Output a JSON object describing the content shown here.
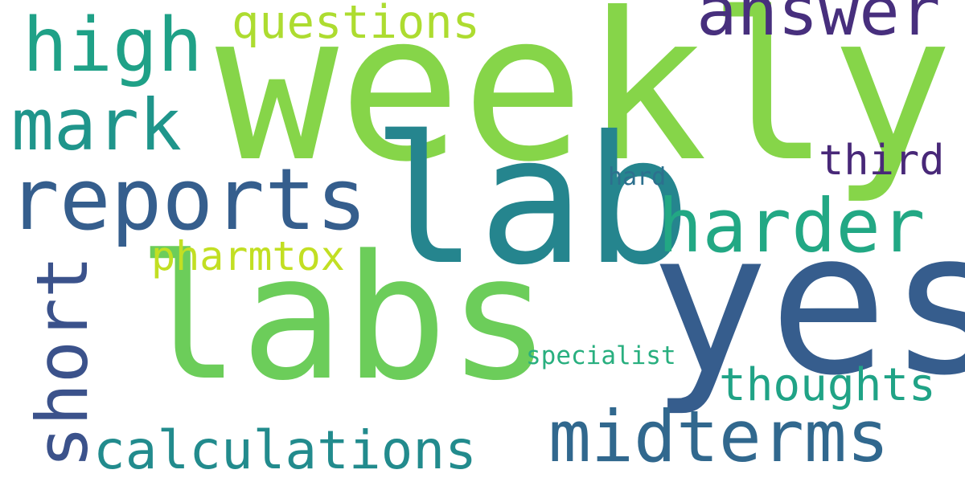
{
  "words": [
    {
      "id": "weekly",
      "text": "weekly",
      "color": "#86d549"
    },
    {
      "id": "lab",
      "text": "lab",
      "color": "#25858e"
    },
    {
      "id": "yes",
      "text": "yes",
      "color": "#365d8d"
    },
    {
      "id": "labs",
      "text": "labs",
      "color": "#6ccd5a"
    },
    {
      "id": "reports",
      "text": "reports",
      "color": "#355e8d"
    },
    {
      "id": "high",
      "text": "high",
      "color": "#1fa187"
    },
    {
      "id": "mark",
      "text": "mark",
      "color": "#1f958b"
    },
    {
      "id": "answer",
      "text": "answer",
      "color": "#472f7d"
    },
    {
      "id": "questions",
      "text": "questions",
      "color": "#addc30"
    },
    {
      "id": "harder",
      "text": "harder",
      "color": "#22a884"
    },
    {
      "id": "midterms",
      "text": "midterms",
      "color": "#31688e"
    },
    {
      "id": "short",
      "text": "short",
      "color": "#3b528b"
    },
    {
      "id": "calculations",
      "text": "calculations",
      "color": "#228b8d"
    },
    {
      "id": "thoughts",
      "text": "thoughts",
      "color": "#20a386"
    },
    {
      "id": "third",
      "text": "third",
      "color": "#482878"
    },
    {
      "id": "pharmtox",
      "text": "pharmtox",
      "color": "#c2df23"
    },
    {
      "id": "specialist",
      "text": "specialist",
      "color": "#29af7f"
    },
    {
      "id": "hard",
      "text": "hard",
      "color": "#2d708e"
    }
  ]
}
